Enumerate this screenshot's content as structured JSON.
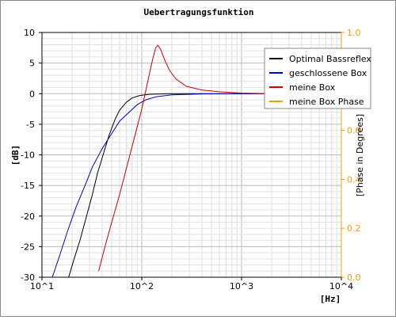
{
  "chart_data": {
    "type": "line",
    "title": "Uebertragungsfunktion",
    "xlabel": "[Hz]",
    "ylabel": "[dB]",
    "y2label": "[Phase in Degrees]",
    "x_scale": "log",
    "xlim": [
      10,
      10000
    ],
    "ylim": [
      -30,
      10
    ],
    "y2lim": [
      0.0,
      1.0
    ],
    "x_ticks": [
      {
        "value": 10,
        "label": "10^1"
      },
      {
        "value": 100,
        "label": "10^2"
      },
      {
        "value": 1000,
        "label": "10^3"
      },
      {
        "value": 10000,
        "label": "10^4"
      }
    ],
    "y_ticks": [
      {
        "value": 10,
        "label": "10"
      },
      {
        "value": 5,
        "label": "5"
      },
      {
        "value": 0,
        "label": "0"
      },
      {
        "value": -5,
        "label": "-5"
      },
      {
        "value": -10,
        "label": "-10"
      },
      {
        "value": -15,
        "label": "-15"
      },
      {
        "value": -20,
        "label": "-20"
      },
      {
        "value": -25,
        "label": "-25"
      },
      {
        "value": -30,
        "label": "-30"
      }
    ],
    "y2_ticks": [
      {
        "value": 0.0,
        "label": "0.0"
      },
      {
        "value": 0.2,
        "label": "0.2"
      },
      {
        "value": 0.4,
        "label": "0.4"
      },
      {
        "value": 0.6,
        "label": "0.6"
      },
      {
        "value": 0.8,
        "label": "0.8"
      },
      {
        "value": 1.0,
        "label": "1.0"
      }
    ],
    "grid": true,
    "legend_position": "top-right",
    "series": [
      {
        "name": "Optimal Bassreflex",
        "color": "#000000",
        "points": [
          [
            18.5,
            -30
          ],
          [
            21,
            -27
          ],
          [
            24,
            -24
          ],
          [
            28,
            -20
          ],
          [
            32,
            -16.5
          ],
          [
            36,
            -13
          ],
          [
            41,
            -10
          ],
          [
            47,
            -6.8
          ],
          [
            54,
            -4.2
          ],
          [
            60,
            -2.7
          ],
          [
            70,
            -1.4
          ],
          [
            80,
            -0.7
          ],
          [
            95,
            -0.3
          ],
          [
            120,
            -0.1
          ],
          [
            200,
            0
          ],
          [
            1000,
            0
          ],
          [
            10000,
            0
          ]
        ]
      },
      {
        "name": "geschlossene Box",
        "color": "#0000cc",
        "points": [
          [
            12.7,
            -30
          ],
          [
            15,
            -26.5
          ],
          [
            18,
            -22.5
          ],
          [
            22,
            -18.5
          ],
          [
            27,
            -15
          ],
          [
            32,
            -12
          ],
          [
            40,
            -9
          ],
          [
            50,
            -6.5
          ],
          [
            60,
            -4.5
          ],
          [
            75,
            -3
          ],
          [
            90,
            -1.8
          ],
          [
            110,
            -1
          ],
          [
            140,
            -0.5
          ],
          [
            200,
            -0.2
          ],
          [
            400,
            -0.05
          ],
          [
            1000,
            0
          ],
          [
            10000,
            0
          ]
        ]
      },
      {
        "name": "meine Box",
        "color": "#cc0000",
        "points": [
          [
            37,
            -29
          ],
          [
            42,
            -25.5
          ],
          [
            50,
            -21
          ],
          [
            60,
            -16.5
          ],
          [
            72,
            -11.5
          ],
          [
            85,
            -7
          ],
          [
            100,
            -2.5
          ],
          [
            115,
            2
          ],
          [
            128,
            5.5
          ],
          [
            138,
            7.5
          ],
          [
            145,
            7.9
          ],
          [
            155,
            7.2
          ],
          [
            170,
            5.5
          ],
          [
            190,
            3.8
          ],
          [
            220,
            2.4
          ],
          [
            280,
            1.2
          ],
          [
            400,
            0.6
          ],
          [
            600,
            0.3
          ],
          [
            1000,
            0.1
          ],
          [
            2000,
            0
          ],
          [
            3000,
            0
          ]
        ]
      },
      {
        "name": "meine Box Phase",
        "color": "#ff9900",
        "points": []
      }
    ]
  }
}
